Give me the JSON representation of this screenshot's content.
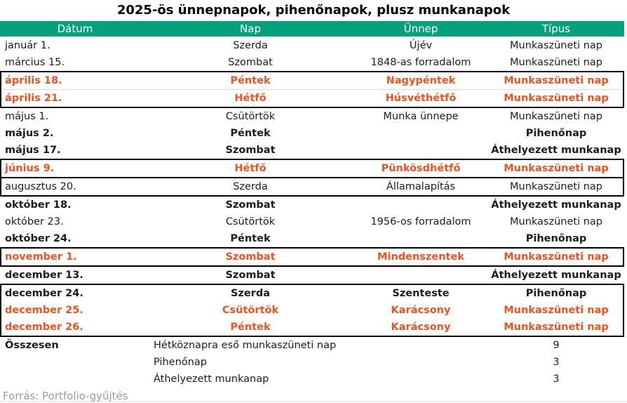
{
  "title": "2025-ös ünnepnapok, pihenőnapok, plusz munkanapok",
  "source": "Forrás: Portfolio-gyűjtés",
  "colors": {
    "header_bg": "#05a17e",
    "header_text": "#ffffff",
    "highlight_orange": "#f4511e",
    "box_border": "#000000",
    "source_gray": "#9b9b9b"
  },
  "chart_data": {
    "type": "table",
    "title": "2025-ös ünnepnapok, pihenőnapok, plusz munkanapok",
    "columns": [
      "Dátum",
      "Nap",
      "Ünnep",
      "Típus"
    ],
    "sections": [
      {
        "boxed": false,
        "rows": [
          {
            "date": "január 1.",
            "day": "Szerda",
            "holiday": "Újév",
            "type": "Munkaszüneti nap",
            "emphasis": "normal"
          },
          {
            "date": "március 15.",
            "day": "Szombat",
            "holiday": "1848-as forradalom",
            "type": "Munkaszüneti nap",
            "emphasis": "normal"
          }
        ]
      },
      {
        "boxed": true,
        "inner_divider": true,
        "rows": [
          {
            "date": "április 18.",
            "day": "Péntek",
            "holiday": "Nagypéntek",
            "type": "Munkaszüneti nap",
            "emphasis": "orange"
          },
          {
            "date": "április 21.",
            "day": "Hétfő",
            "holiday": "Húsvéthétfő",
            "type": "Munkaszüneti nap",
            "emphasis": "orange"
          }
        ]
      },
      {
        "boxed": false,
        "rows": [
          {
            "date": "május 1.",
            "day": "Csütörtök",
            "holiday": "Munka ünnepe",
            "type": "Munkaszüneti nap",
            "emphasis": "normal"
          },
          {
            "date": "május 2.",
            "day": "Péntek",
            "holiday": "",
            "type": "Pihenőnap",
            "emphasis": "bold"
          },
          {
            "date": "május 17.",
            "day": "Szombat",
            "holiday": "",
            "type": "Áthelyezett munkanap",
            "emphasis": "bold"
          }
        ]
      },
      {
        "boxed": true,
        "rows": [
          {
            "date": "június 9.",
            "day": "Hétfő",
            "holiday": "Pünkösdhétfő",
            "type": "Munkaszüneti nap",
            "emphasis": "orange"
          }
        ]
      },
      {
        "boxed": true,
        "joined": true,
        "rows": [
          {
            "date": "augusztus 20.",
            "day": "Szerda",
            "holiday": "Államalapítás",
            "type": "Munkaszüneti nap",
            "emphasis": "normal"
          }
        ]
      },
      {
        "boxed": false,
        "rows": [
          {
            "date": "október 18.",
            "day": "Szombat",
            "holiday": "",
            "type": "Áthelyezett munkanap",
            "emphasis": "bold"
          },
          {
            "date": "október 23.",
            "day": "Csütörtök",
            "holiday": "1956-os forradalom",
            "type": "Munkaszüneti nap",
            "emphasis": "normal"
          },
          {
            "date": "október 24.",
            "day": "Péntek",
            "holiday": "",
            "type": "Pihenőnap",
            "emphasis": "bold"
          }
        ]
      },
      {
        "boxed": true,
        "rows": [
          {
            "date": "november 1.",
            "day": "Szombat",
            "holiday": "Mindenszentek",
            "type": "Munkaszüneti nap",
            "emphasis": "orange"
          }
        ]
      },
      {
        "boxed": false,
        "rows": [
          {
            "date": "december 13.",
            "day": "Szombat",
            "holiday": "",
            "type": "Áthelyezett munkanap",
            "emphasis": "bold"
          }
        ]
      },
      {
        "boxed": true,
        "rows": [
          {
            "date": "december 24.",
            "day": "Szerda",
            "holiday": "Szenteste",
            "type": "Pihenőnap",
            "emphasis": "bold"
          },
          {
            "date": "december 25.",
            "day": "Csütörtök",
            "holiday": "Karácsony",
            "type": "Munkaszüneti nap",
            "emphasis": "orange"
          },
          {
            "date": "december 26.",
            "day": "Péntek",
            "holiday": "Karácsony",
            "type": "Munkaszüneti nap",
            "emphasis": "orange"
          }
        ]
      }
    ],
    "summary": {
      "total_label": "Összesen",
      "rows": [
        {
          "label": "Hétköznapra eső munkaszüneti nap",
          "value": "9"
        },
        {
          "label": "Pihenőnap",
          "value": "3"
        },
        {
          "label": "Áthelyezett munkanap",
          "value": "3"
        }
      ]
    }
  }
}
